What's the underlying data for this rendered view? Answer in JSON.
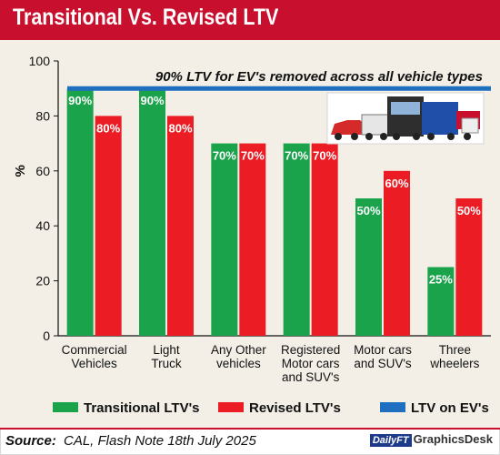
{
  "header": {
    "title": "Transitional Vs. Revised LTV"
  },
  "footer": {
    "source_label": "Source:",
    "source_text": "CAL, Flash Note 18th July 2025",
    "brand_mark": "DailyFT",
    "brand_name": "GraphicsDesk"
  },
  "colors": {
    "title_bg": "#c8102e",
    "panel_bg": "#f3efe7",
    "transitional": "#1aa34a",
    "revised": "#ec1c24",
    "ev": "#1f6fc0"
  },
  "chart_data": {
    "type": "bar",
    "title": "Transitional Vs. Revised LTV",
    "ylabel": "%",
    "ylim": [
      0,
      100
    ],
    "yticks": [
      0,
      20,
      40,
      60,
      80,
      100
    ],
    "grid": false,
    "legend_position": "bottom",
    "categories": [
      "Commercial Vehicles",
      "Light Truck",
      "Any Other vehicles",
      "Registered Motor cars and SUV's",
      "Motor cars and SUV's",
      "Three wheelers"
    ],
    "category_lines": [
      [
        "Commercial",
        "Vehicles"
      ],
      [
        "Light",
        "Truck"
      ],
      [
        "Any Other",
        "vehicles"
      ],
      [
        "Registered",
        "Motor cars",
        "and SUV's"
      ],
      [
        "Motor cars",
        "and SUV's"
      ],
      [
        "Three",
        "wheelers"
      ]
    ],
    "series": [
      {
        "name": "Transitional LTV's",
        "values": [
          90,
          90,
          70,
          70,
          50,
          25
        ],
        "labels": [
          "90%",
          "90%",
          "70%",
          "70%",
          "50%",
          "25%"
        ]
      },
      {
        "name": "Revised LTV's",
        "values": [
          80,
          80,
          70,
          70,
          60,
          50
        ],
        "labels": [
          "80%",
          "80%",
          "70%",
          "70%",
          "60%",
          "50%"
        ]
      }
    ],
    "reference_line": {
      "name": "LTV on EV's",
      "value": 90
    },
    "annotation": "90% LTV for EV's removed across all vehicle types",
    "legend": [
      "Transitional LTV's",
      "Revised LTV's",
      "LTV on EV's"
    ]
  }
}
